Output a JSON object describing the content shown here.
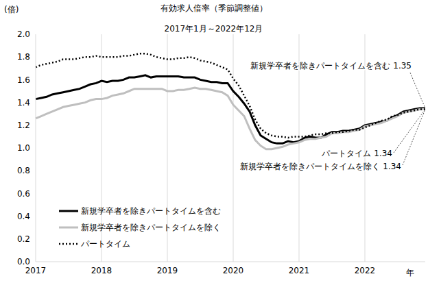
{
  "chart_data": {
    "type": "line",
    "title": "有効求人倍率（季節調整値）",
    "subtitle": "2017年1月～2022年12月",
    "y_label": "(倍)",
    "x_label": "年",
    "categories": [
      "2017",
      null,
      null,
      null,
      null,
      null,
      null,
      null,
      null,
      null,
      null,
      null,
      "2018",
      null,
      null,
      null,
      null,
      null,
      null,
      null,
      null,
      null,
      null,
      null,
      "2019",
      null,
      null,
      null,
      null,
      null,
      null,
      null,
      null,
      null,
      null,
      null,
      "2020",
      null,
      null,
      null,
      null,
      null,
      null,
      null,
      null,
      null,
      null,
      null,
      "2021",
      null,
      null,
      null,
      null,
      null,
      null,
      null,
      null,
      null,
      null,
      null,
      "2022",
      null,
      null,
      null,
      null,
      null,
      null,
      null,
      null,
      null,
      null,
      null
    ],
    "series": [
      {
        "name": "新規学卒者を除きパートタイムを含む",
        "color": "#000000",
        "line_style": "solid",
        "values": [
          1.43,
          1.44,
          1.45,
          1.47,
          1.48,
          1.49,
          1.5,
          1.51,
          1.52,
          1.54,
          1.56,
          1.57,
          1.59,
          1.58,
          1.59,
          1.59,
          1.6,
          1.62,
          1.62,
          1.63,
          1.64,
          1.62,
          1.63,
          1.63,
          1.63,
          1.63,
          1.63,
          1.62,
          1.62,
          1.62,
          1.6,
          1.59,
          1.58,
          1.58,
          1.57,
          1.57,
          1.5,
          1.45,
          1.39,
          1.32,
          1.2,
          1.11,
          1.08,
          1.05,
          1.04,
          1.04,
          1.06,
          1.05,
          1.06,
          1.09,
          1.1,
          1.09,
          1.09,
          1.12,
          1.14,
          1.14,
          1.15,
          1.15,
          1.16,
          1.17,
          1.2,
          1.21,
          1.22,
          1.23,
          1.24,
          1.27,
          1.29,
          1.32,
          1.33,
          1.34,
          1.35,
          1.35
        ]
      },
      {
        "name": "新規学卒者を除きパートタイムを除く",
        "color": "#bfbfbf",
        "line_style": "solid",
        "values": [
          1.26,
          1.28,
          1.3,
          1.32,
          1.34,
          1.36,
          1.37,
          1.38,
          1.39,
          1.4,
          1.42,
          1.43,
          1.43,
          1.44,
          1.46,
          1.47,
          1.48,
          1.5,
          1.52,
          1.52,
          1.52,
          1.52,
          1.52,
          1.52,
          1.5,
          1.5,
          1.51,
          1.51,
          1.52,
          1.53,
          1.52,
          1.52,
          1.51,
          1.5,
          1.49,
          1.46,
          1.38,
          1.33,
          1.28,
          1.17,
          1.07,
          1.02,
          0.99,
          0.99,
          1.0,
          1.01,
          1.03,
          1.04,
          1.05,
          1.07,
          1.08,
          1.08,
          1.09,
          1.1,
          1.13,
          1.13,
          1.14,
          1.14,
          1.15,
          1.16,
          1.19,
          1.2,
          1.21,
          1.22,
          1.24,
          1.26,
          1.28,
          1.31,
          1.32,
          1.33,
          1.34,
          1.34
        ]
      },
      {
        "name": "パートタイム",
        "color": "#000000",
        "line_style": "dotted",
        "values": [
          1.71,
          1.73,
          1.74,
          1.75,
          1.76,
          1.78,
          1.78,
          1.78,
          1.79,
          1.8,
          1.8,
          1.81,
          1.8,
          1.8,
          1.8,
          1.8,
          1.81,
          1.81,
          1.82,
          1.83,
          1.83,
          1.82,
          1.8,
          1.79,
          1.78,
          1.78,
          1.79,
          1.79,
          1.8,
          1.79,
          1.77,
          1.76,
          1.75,
          1.73,
          1.71,
          1.69,
          1.61,
          1.55,
          1.46,
          1.37,
          1.25,
          1.17,
          1.13,
          1.11,
          1.1,
          1.1,
          1.09,
          1.1,
          1.1,
          1.1,
          1.11,
          1.12,
          1.12,
          1.13,
          1.13,
          1.14,
          1.14,
          1.15,
          1.16,
          1.16,
          1.18,
          1.2,
          1.22,
          1.24,
          1.25,
          1.28,
          1.29,
          1.31,
          1.32,
          1.33,
          1.34,
          1.34
        ]
      }
    ],
    "annotations": [
      {
        "text": "新規学卒者を除きパートタイムを含む 1.35",
        "series": "新規学卒者を除きパートタイムを含む"
      },
      {
        "text": "パートタイム 1.34",
        "series": "パートタイム"
      },
      {
        "text": "新規学卒者を除きパートタイムを除く 1.34",
        "series": "新規学卒者を除きパートタイムを除く"
      }
    ],
    "ylim": [
      0,
      2
    ],
    "yticks": [
      {
        "value": 0,
        "label": "0.0"
      },
      0.2,
      0.4,
      0.6,
      0.8,
      {
        "value": 1,
        "label": "1.0"
      },
      1.2,
      1.4,
      1.6,
      1.8,
      {
        "value": 2,
        "label": "2.0"
      }
    ],
    "grid": true,
    "legend": "lower left"
  }
}
